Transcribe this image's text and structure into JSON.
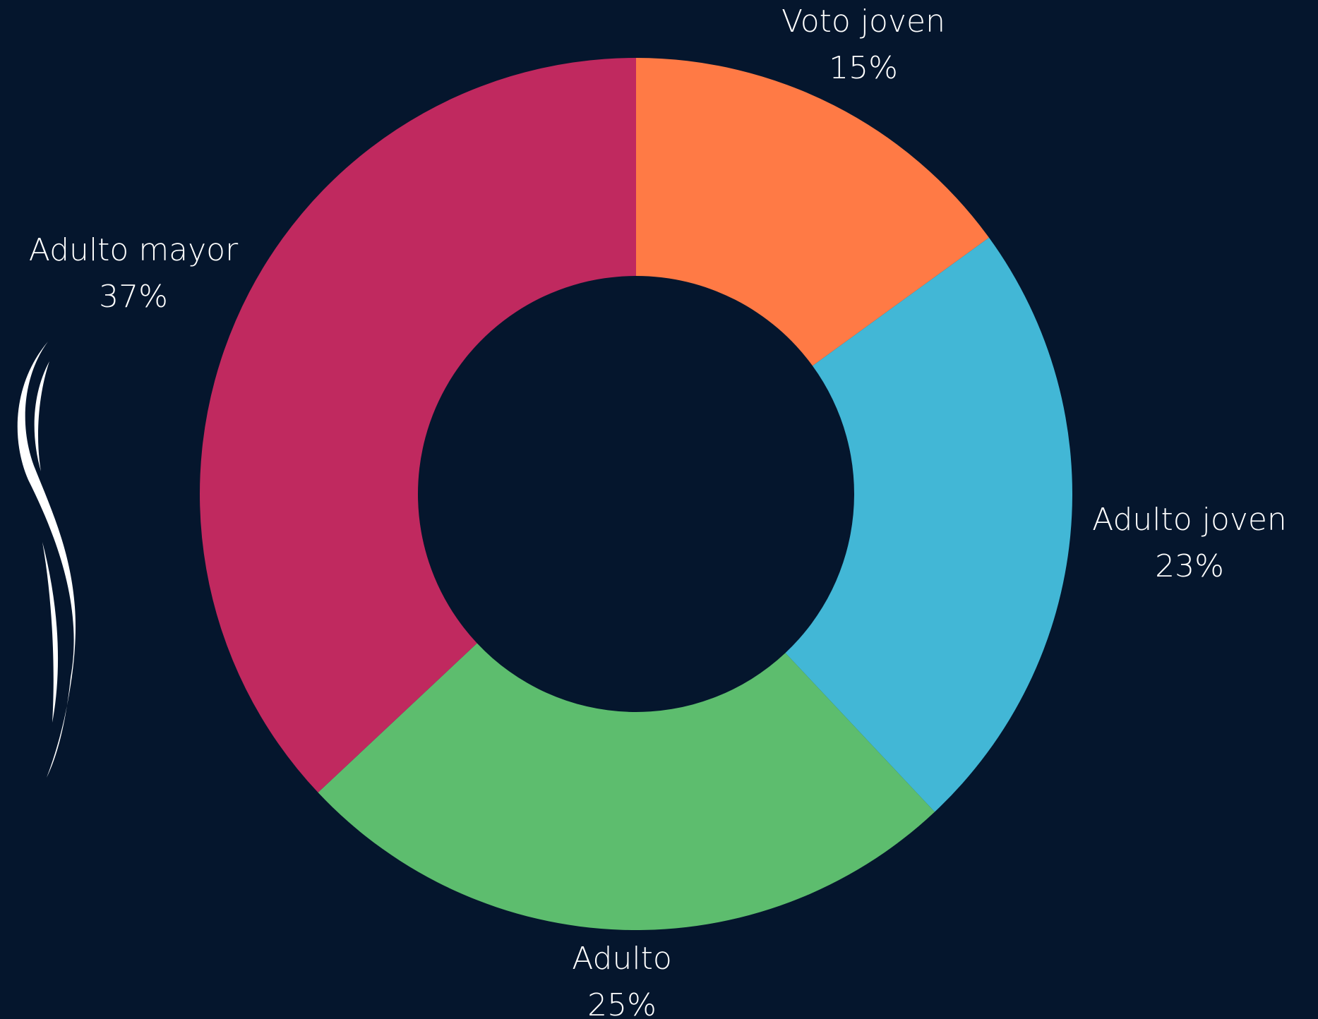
{
  "chart_data": {
    "type": "donut",
    "categories": [
      "Voto joven",
      "Adulto joven",
      "Adulto",
      "Adulto mayor"
    ],
    "values": [
      15,
      23,
      25,
      37
    ],
    "value_labels": [
      "15%",
      "23%",
      "25%",
      "37%"
    ],
    "colors": [
      "#ff7a45",
      "#42b7d6",
      "#5dbd6e",
      "#c0295f"
    ]
  }
}
